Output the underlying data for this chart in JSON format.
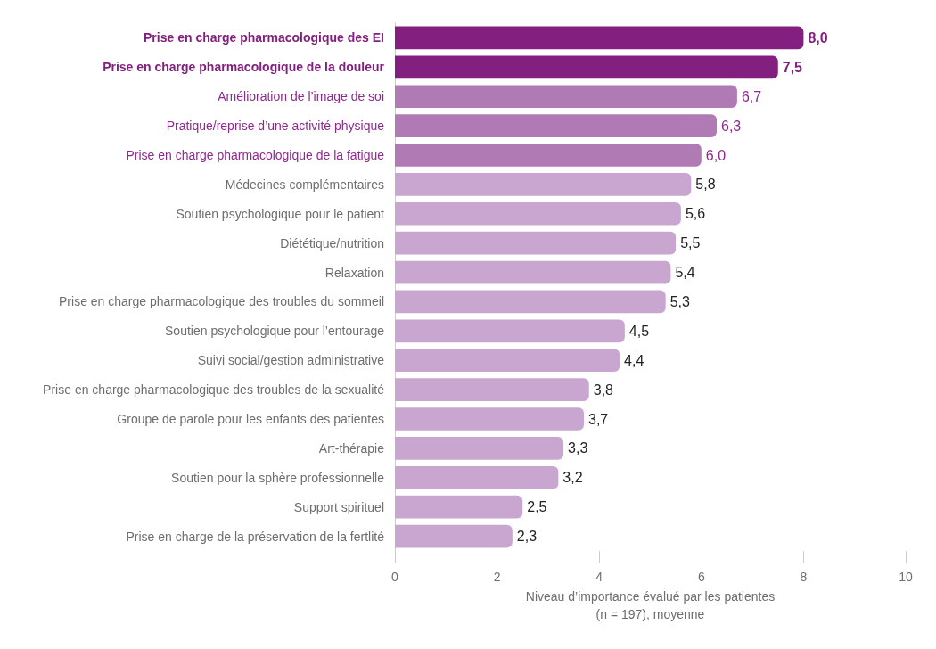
{
  "chart_data": {
    "type": "bar",
    "orientation": "horizontal",
    "xlabel": "Niveau d’importance évalué par les patientes\n(n = 197), moyenne",
    "categories": [
      "Prise en charge pharmacologique des EI",
      "Prise en charge pharmacologique de la douleur",
      "Amélioration de l’image de soi",
      "Pratique/reprise d’une activité physique",
      "Prise en charge pharmacologique de la fatigue",
      "Médecines complémentaires",
      "Soutien psychologique pour le patient",
      "Diététique/nutrition",
      "Relaxation",
      "Prise en charge pharmacologique des troubles du sommeil",
      "Soutien psychologique pour l’entourage",
      "Suivi social/gestion administrative",
      "Prise en charge pharmacologique des troubles de la sexualité",
      "Groupe de parole pour les enfants des patientes",
      "Art-thérapie",
      "Soutien pour la sphère professionnelle",
      "Support spirituel",
      "Prise en charge de la préservation de la fertlité"
    ],
    "values": [
      8.0,
      7.5,
      6.7,
      6.3,
      6.0,
      5.8,
      5.6,
      5.5,
      5.4,
      5.3,
      4.5,
      4.4,
      3.8,
      3.7,
      3.3,
      3.2,
      2.5,
      2.3
    ],
    "value_labels": [
      "8,0",
      "7,5",
      "6,7",
      "6,3",
      "6,0",
      "5,8",
      "5,6",
      "5,5",
      "5,4",
      "5,3",
      "4,5",
      "4,4",
      "3,8",
      "3,7",
      "3,3",
      "3,2",
      "2,5",
      "2,3"
    ],
    "colors": [
      "#831f7e",
      "#831f7e",
      "#b07ab4",
      "#b07ab4",
      "#b07ab4",
      "#c9a6cf",
      "#c9a6cf",
      "#c9a6cf",
      "#c9a6cf",
      "#c9a6cf",
      "#c9a6cf",
      "#c9a6cf",
      "#c9a6cf",
      "#c9a6cf",
      "#c9a6cf",
      "#c9a6cf",
      "#c9a6cf",
      "#c9a6cf"
    ],
    "xlim": [
      0,
      10
    ],
    "xticks": [
      0,
      2,
      4,
      6,
      8,
      10
    ]
  }
}
